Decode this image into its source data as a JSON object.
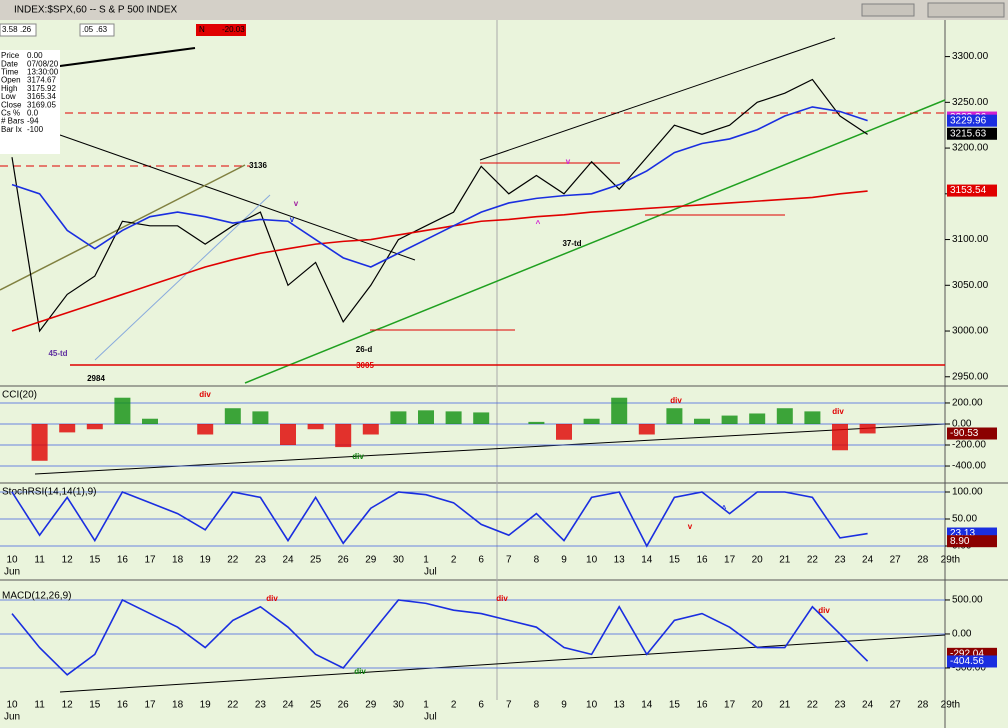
{
  "window": {
    "title": "INDEX:$SPX,60 -- S & P 500 INDEX",
    "toolbar": [
      "3.58",
      ".26",
      ".05",
      ".63",
      "N",
      "-20.03"
    ]
  },
  "info": [
    [
      "Price",
      "0.00"
    ],
    [
      "Date",
      "07/08/20"
    ],
    [
      "Time",
      "13:30:00"
    ],
    [
      "Open",
      "3174.67"
    ],
    [
      "High",
      "3175.92"
    ],
    [
      "Low",
      "3165.34"
    ],
    [
      "Close",
      "3169.05"
    ],
    [
      "Cs %",
      "0.0"
    ],
    [
      "# Bars",
      "-94"
    ],
    [
      "Bar Ix",
      "-100"
    ]
  ],
  "annotations": {
    "price": [
      "3136",
      "2984",
      "45-td",
      "26-d",
      "3005",
      "37-td",
      "v",
      "v",
      "v",
      "^"
    ],
    "cci": [
      "div",
      "div",
      "div",
      "div"
    ],
    "stoch": [
      "v",
      "^"
    ],
    "macd": [
      "div",
      "div",
      "div",
      "div"
    ]
  },
  "months": [
    "Jun",
    "Jul"
  ],
  "chart_data": [
    {
      "type": "line",
      "ylim": [
        2941,
        3340
      ],
      "yticks": [
        {
          "value": 3300,
          "label": "3300.00"
        },
        {
          "value": 3250,
          "label": "3250.00"
        },
        {
          "value": 3200,
          "label": "3200.00"
        },
        {
          "value": 3150,
          "label": "3150.00"
        },
        {
          "value": 3100,
          "label": "3100.00"
        },
        {
          "value": 3050,
          "label": "3050.00"
        },
        {
          "value": 3000,
          "label": "3000.00"
        },
        {
          "value": 2950,
          "label": "2950.00"
        }
      ],
      "series": [
        {
          "color": "#000000",
          "values": [
            3190,
            3000,
            3040,
            3060,
            3120,
            3115,
            3115,
            3095,
            3115,
            3130,
            3050,
            3075,
            3010,
            3050,
            3100,
            3115,
            3130,
            3180,
            3150,
            3170,
            3150,
            3185,
            3155,
            3190,
            3225,
            3215,
            3225,
            3250,
            3260,
            3275,
            3235,
            3215,
            null,
            null,
            null
          ]
        },
        {
          "color": "#e00000",
          "values": [
            3000,
            3010,
            3020,
            3030,
            3040,
            3050,
            3060,
            3070,
            3078,
            3085,
            3090,
            3095,
            3098,
            3100,
            3105,
            3110,
            3115,
            3120,
            3122,
            3125,
            3127,
            3130,
            3132,
            3134,
            3136,
            3138,
            3140,
            3142,
            3144,
            3146,
            3150,
            3153,
            null,
            null,
            null
          ]
        },
        {
          "color": "#1a2ee0",
          "values": [
            3160,
            3150,
            3110,
            3090,
            3110,
            3125,
            3130,
            3125,
            3118,
            3122,
            3120,
            3100,
            3080,
            3070,
            3085,
            3100,
            3115,
            3130,
            3140,
            3145,
            3148,
            3150,
            3160,
            3175,
            3195,
            3205,
            3210,
            3220,
            3235,
            3245,
            3240,
            3230,
            null,
            null,
            null
          ]
        }
      ],
      "markers": [
        {
          "value": 3233.36,
          "color": "#d020d0"
        },
        {
          "value": 3229.96,
          "color": "#1a2ee0"
        },
        {
          "value": 3215.63,
          "color": "#000000"
        },
        {
          "value": 3153.54,
          "color": "#e00000"
        }
      ]
    },
    {
      "type": "bar",
      "label": "CCI(20)",
      "ylim": [
        -514,
        352
      ],
      "yticks": [
        {
          "value": 200,
          "label": "200.00"
        },
        {
          "value": 0,
          "label": "0.00"
        },
        {
          "value": -200,
          "label": "-200.00"
        },
        {
          "value": -400,
          "label": "-400.00"
        }
      ],
      "pos_color": "#109010",
      "neg_color": "#e00000",
      "values": [
        0,
        -350,
        -80,
        -50,
        250,
        50,
        0,
        -100,
        150,
        120,
        -200,
        -50,
        -220,
        -100,
        120,
        130,
        120,
        110,
        0,
        20,
        -150,
        50,
        250,
        -100,
        150,
        50,
        80,
        100,
        150,
        120,
        -250,
        -90,
        null,
        null,
        null
      ],
      "markers": [
        {
          "value": -90.53,
          "color": "#8b0000"
        }
      ]
    },
    {
      "type": "line",
      "label": "StochRSI(14,14(1),9)",
      "ylim": [
        -7.4,
        114.8
      ],
      "yticks": [
        {
          "value": 100,
          "label": "100.00"
        },
        {
          "value": 50,
          "label": "50.00"
        },
        {
          "value": 0,
          "label": "0.00"
        }
      ],
      "categories": [
        "10",
        "11",
        "12",
        "15",
        "16",
        "17",
        "18",
        "19",
        "22",
        "23",
        "24",
        "25",
        "26",
        "29",
        "30",
        "1",
        "2",
        "6",
        "7",
        "8",
        "9",
        "10",
        "13",
        "14",
        "15",
        "16",
        "17",
        "20",
        "21",
        "22",
        "23",
        "24",
        "27",
        "28",
        "29th"
      ],
      "series": [
        {
          "color": "#1a2ee0",
          "values": [
            100,
            20,
            90,
            10,
            100,
            80,
            60,
            30,
            100,
            90,
            10,
            90,
            5,
            70,
            100,
            95,
            80,
            40,
            20,
            60,
            10,
            90,
            100,
            0,
            90,
            100,
            60,
            100,
            100,
            90,
            15,
            23,
            null,
            null,
            null
          ]
        }
      ],
      "markers": [
        {
          "value": 23.13,
          "color": "#1a2ee0"
        },
        {
          "value": 8.9,
          "label": "8.90",
          "color": "#8b0000"
        }
      ]
    },
    {
      "type": "line",
      "label": "MACD(12,26,9)",
      "ylim": [
        -971,
        676
      ],
      "yticks": [
        {
          "value": 500,
          "label": "500.00"
        },
        {
          "value": 0,
          "label": "0.00"
        },
        {
          "value": -500,
          "label": "-500.00"
        }
      ],
      "categories": [
        "10",
        "11",
        "12",
        "15",
        "16",
        "17",
        "18",
        "19",
        "22",
        "23",
        "24",
        "25",
        "26",
        "29",
        "30",
        "1",
        "2",
        "6",
        "7",
        "8",
        "9",
        "10",
        "13",
        "14",
        "15",
        "16",
        "17",
        "20",
        "21",
        "22",
        "23",
        "24",
        "27",
        "28",
        "29th"
      ],
      "series": [
        {
          "color": "#1a2ee0",
          "values": [
            300,
            -200,
            -600,
            -300,
            500,
            300,
            100,
            -200,
            200,
            400,
            100,
            -300,
            -500,
            0,
            500,
            450,
            350,
            300,
            200,
            100,
            -200,
            -300,
            400,
            -300,
            200,
            300,
            100,
            -200,
            -200,
            400,
            0,
            -400,
            null,
            null,
            null
          ]
        }
      ],
      "markers": [
        {
          "value": -292.04,
          "color": "#8b0000"
        },
        {
          "value": -404.56,
          "color": "#1a2ee0"
        }
      ]
    }
  ]
}
